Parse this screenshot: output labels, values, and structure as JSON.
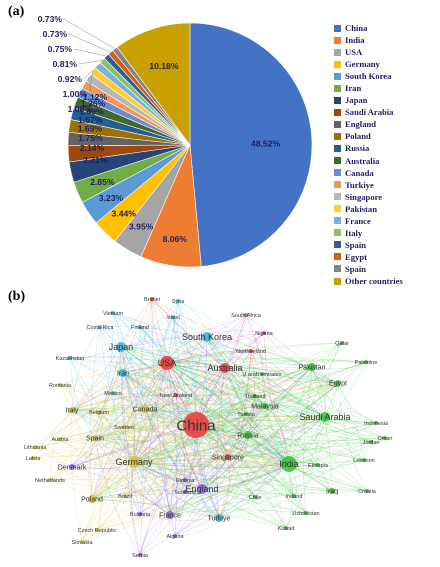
{
  "panels": {
    "a_label": "(a)",
    "b_label": "(b)"
  },
  "chart_data": [
    {
      "type": "pie",
      "labels": [
        "China",
        "India",
        "USA",
        "Germany",
        "South Korea",
        "Iran",
        "Japan",
        "Saudi Arabia",
        "England",
        "Poland",
        "Russia",
        "Australia",
        "Canada",
        "Turkiye",
        "Singapore",
        "Pakistan",
        "France",
        "Italy",
        "Spain",
        "Egypt",
        "Spain",
        "Other countries"
      ],
      "values": [
        48.52,
        8.06,
        3.95,
        3.44,
        3.23,
        2.85,
        2.71,
        2.14,
        1.75,
        1.69,
        1.57,
        1.49,
        1.26,
        1.12,
        1.08,
        1.0,
        0.92,
        0.81,
        0.75,
        0.73,
        0.73,
        10.18
      ],
      "value_labels": [
        "48.52%",
        "8.06%",
        "3.95%",
        "3.44%",
        "3.23%",
        "2.85%",
        "2.71%",
        "2.14%",
        "1.75%",
        "1.69%",
        "1.57%",
        "1.49%",
        "1.26%",
        "1.12%",
        "1.08%",
        "1.00%",
        "0.92%",
        "0.81%",
        "0.75%",
        "0.73%",
        "0.73%",
        "10.18%"
      ],
      "colors": [
        "#4472C4",
        "#ED7D31",
        "#A5A5A5",
        "#FFC000",
        "#5B9BD5",
        "#70AD47",
        "#264478",
        "#9E480E",
        "#636363",
        "#997300",
        "#255E91",
        "#43682B",
        "#698ED0",
        "#F1975A",
        "#B7B7B7",
        "#FFCD33",
        "#7CAFDD",
        "#8CC168",
        "#335AA1",
        "#D26012",
        "#838383",
        "#C8A000"
      ],
      "legend_position": "right"
    },
    {
      "type": "network",
      "nodes": [
        {
          "name": "China",
          "color": "#e8413c"
        },
        {
          "name": "India",
          "color": "#3ec23e"
        },
        {
          "name": "USA",
          "color": "#e8413c"
        },
        {
          "name": "Germany",
          "color": "#d6c341"
        },
        {
          "name": "South Korea",
          "color": "#3fb7d6"
        },
        {
          "name": "Japan",
          "color": "#3fb7d6"
        },
        {
          "name": "Iran",
          "color": "#3fb7d6"
        },
        {
          "name": "Saudi Arabia",
          "color": "#3ec23e"
        },
        {
          "name": "Pakistan",
          "color": "#3ec23e"
        },
        {
          "name": "England",
          "color": "#8d5fe0"
        },
        {
          "name": "Poland",
          "color": "#d6c341"
        },
        {
          "name": "Russia",
          "color": "#3ec23e"
        },
        {
          "name": "Australia",
          "color": "#e8413c"
        },
        {
          "name": "Canada",
          "color": "#d6c341"
        },
        {
          "name": "Turkiye",
          "color": "#3fb7d6"
        },
        {
          "name": "Singapore",
          "color": "#e8413c"
        },
        {
          "name": "France",
          "color": "#8d5fe0"
        },
        {
          "name": "Italy",
          "color": "#d6c341"
        },
        {
          "name": "Spain",
          "color": "#d6c341"
        },
        {
          "name": "Egypt",
          "color": "#3ec23e"
        },
        {
          "name": "Malaysia",
          "color": "#3ec23e"
        },
        {
          "name": "Thailand",
          "color": "#3ec23e"
        },
        {
          "name": "U arab emirates",
          "color": "#3ec23e"
        },
        {
          "name": "Tunisia",
          "color": "#3ec23e"
        },
        {
          "name": "Qatar",
          "color": "#3ec23e"
        },
        {
          "name": "Palestine",
          "color": "#3ec23e"
        },
        {
          "name": "Indonesia",
          "color": "#3ec23e"
        },
        {
          "name": "Oman",
          "color": "#3ec23e"
        },
        {
          "name": "Jordan",
          "color": "#3ec23e"
        },
        {
          "name": "Lebanon",
          "color": "#3ec23e"
        },
        {
          "name": "Ethiopia",
          "color": "#3ec23e"
        },
        {
          "name": "Iraq",
          "color": "#3ec23e"
        },
        {
          "name": "Croatia",
          "color": "#3ec23e"
        },
        {
          "name": "Ireland",
          "color": "#3ec23e"
        },
        {
          "name": "Uzbekistan",
          "color": "#3ec23e"
        },
        {
          "name": "Kuwait",
          "color": "#3ec23e"
        },
        {
          "name": "Chile",
          "color": "#3ec23e"
        },
        {
          "name": "South Africa",
          "color": "#c94fc9"
        },
        {
          "name": "Nigeria",
          "color": "#c94fc9"
        },
        {
          "name": "Northireland",
          "color": "#e8413c"
        },
        {
          "name": "Brunei",
          "color": "#e8413c"
        },
        {
          "name": "Syria",
          "color": "#3fb7d6"
        },
        {
          "name": "Israel",
          "color": "#3fb7d6"
        },
        {
          "name": "Vietnam",
          "color": "#3fb7d6"
        },
        {
          "name": "Costa Rica",
          "color": "#3fb7d6"
        },
        {
          "name": "Finland",
          "color": "#3fb7d6"
        },
        {
          "name": "Kazakhstan",
          "color": "#3fb7d6"
        },
        {
          "name": "Romania",
          "color": "#d6c341"
        },
        {
          "name": "Mexico",
          "color": "#3fb7d6"
        },
        {
          "name": "Belgium",
          "color": "#d6c341"
        },
        {
          "name": "New Zealand",
          "color": "#e8413c"
        },
        {
          "name": "Sweden",
          "color": "#d6c341"
        },
        {
          "name": "Austria",
          "color": "#d6c341"
        },
        {
          "name": "Lithuania",
          "color": "#d6c341"
        },
        {
          "name": "Latvia",
          "color": "#d6c341"
        },
        {
          "name": "Denmark",
          "color": "#8d5fe0"
        },
        {
          "name": "Netherlands",
          "color": "#d6c341"
        },
        {
          "name": "Brazil",
          "color": "#d6c341"
        },
        {
          "name": "Estonia",
          "color": "#8d5fe0"
        },
        {
          "name": "Scotland",
          "color": "#8d5fe0"
        },
        {
          "name": "Bulgaria",
          "color": "#8d5fe0"
        },
        {
          "name": "Czech Republic",
          "color": "#d6c341"
        },
        {
          "name": "Slovakia",
          "color": "#d6c341"
        },
        {
          "name": "Algeria",
          "color": "#8d5fe0"
        },
        {
          "name": "Serbia",
          "color": "#8d5fe0"
        }
      ]
    }
  ]
}
